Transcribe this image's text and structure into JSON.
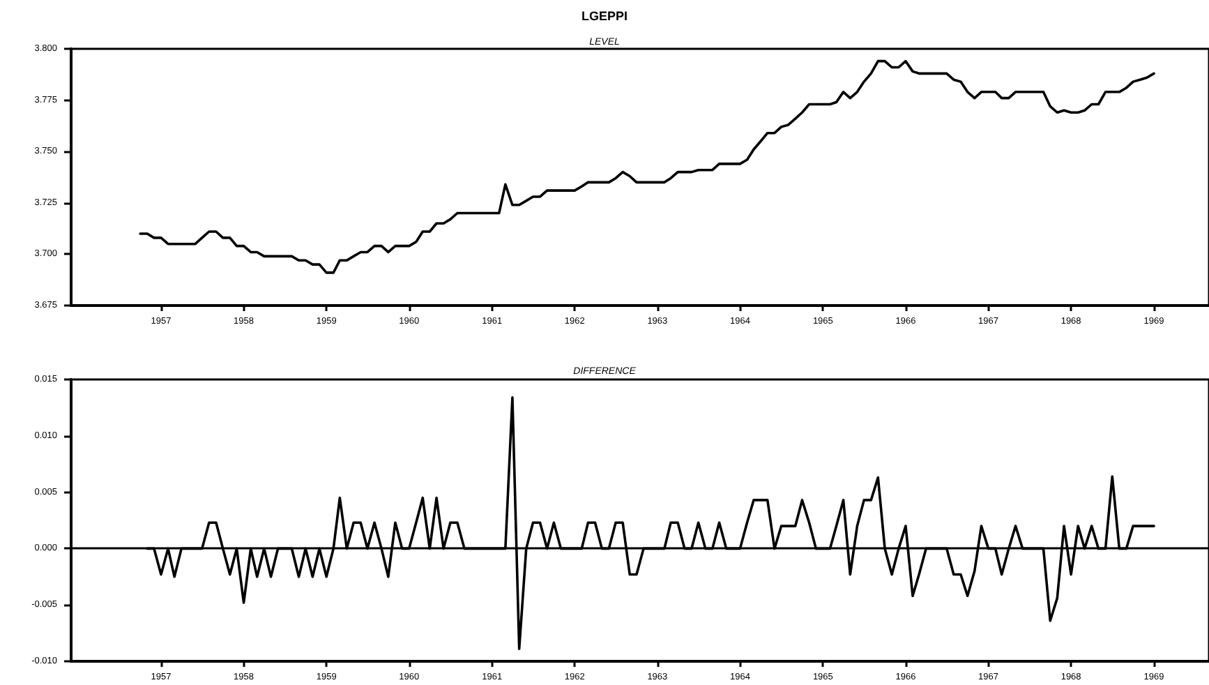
{
  "chart_data": [
    {
      "type": "line",
      "title": "LGEPPI",
      "subtitle": "LEVEL",
      "x": [
        "1956-10",
        "1956-11",
        "1956-12",
        "1957-01",
        "1957-02",
        "1957-03",
        "1957-04",
        "1957-05",
        "1957-06",
        "1957-07",
        "1957-08",
        "1957-09",
        "1957-10",
        "1957-11",
        "1957-12",
        "1958-01",
        "1958-02",
        "1958-03",
        "1958-04",
        "1958-05",
        "1958-06",
        "1958-07",
        "1958-08",
        "1958-09",
        "1958-10",
        "1958-11",
        "1958-12",
        "1959-01",
        "1959-02",
        "1959-03",
        "1959-04",
        "1959-05",
        "1959-06",
        "1959-07",
        "1959-08",
        "1959-09",
        "1959-10",
        "1959-11",
        "1959-12",
        "1960-01",
        "1960-02",
        "1960-03",
        "1960-04",
        "1960-05",
        "1960-06",
        "1960-07",
        "1960-08",
        "1960-09",
        "1960-10",
        "1960-11",
        "1960-12",
        "1961-01",
        "1961-02",
        "1961-03",
        "1961-04",
        "1961-05",
        "1961-06",
        "1961-07",
        "1961-08",
        "1961-09",
        "1961-10",
        "1961-11",
        "1961-12",
        "1962-01",
        "1962-02",
        "1962-03",
        "1962-04",
        "1962-05",
        "1962-06",
        "1962-07",
        "1962-08",
        "1962-09",
        "1962-10",
        "1962-11",
        "1962-12",
        "1963-01",
        "1963-02",
        "1963-03",
        "1963-04",
        "1963-05",
        "1963-06",
        "1963-07",
        "1963-08",
        "1963-09",
        "1963-10",
        "1963-11",
        "1963-12",
        "1964-01",
        "1964-02",
        "1964-03",
        "1964-04",
        "1964-05",
        "1964-06",
        "1964-07",
        "1964-08",
        "1964-09",
        "1964-10",
        "1964-11",
        "1964-12",
        "1965-01",
        "1965-02",
        "1965-03",
        "1965-04",
        "1965-05",
        "1965-06",
        "1965-07",
        "1965-08",
        "1965-09",
        "1965-10",
        "1965-11",
        "1965-12",
        "1966-01",
        "1966-02",
        "1966-03",
        "1966-04",
        "1966-05",
        "1966-06",
        "1966-07",
        "1966-08",
        "1966-09",
        "1966-10",
        "1966-11",
        "1966-12",
        "1967-01",
        "1967-02",
        "1967-03",
        "1967-04",
        "1967-05",
        "1967-06",
        "1967-07",
        "1967-08",
        "1967-09",
        "1967-10",
        "1967-11",
        "1967-12",
        "1968-01",
        "1968-02",
        "1968-03",
        "1968-04",
        "1968-05",
        "1968-06",
        "1968-07",
        "1968-08",
        "1968-09",
        "1968-10",
        "1968-11",
        "1968-12",
        "1969-01"
      ],
      "series": [
        {
          "color": "#000000",
          "values": [
            3.71,
            3.71,
            3.708,
            3.708,
            3.705,
            3.705,
            3.705,
            3.705,
            3.705,
            3.708,
            3.711,
            3.711,
            3.708,
            3.708,
            3.704,
            3.704,
            3.701,
            3.701,
            3.699,
            3.699,
            3.699,
            3.699,
            3.699,
            3.697,
            3.697,
            3.695,
            3.695,
            3.691,
            3.691,
            3.697,
            3.697,
            3.699,
            3.701,
            3.701,
            3.704,
            3.704,
            3.701,
            3.704,
            3.704,
            3.704,
            3.706,
            3.711,
            3.711,
            3.715,
            3.715,
            3.717,
            3.72,
            3.72,
            3.72,
            3.72,
            3.72,
            3.72,
            3.72,
            3.734,
            3.724,
            3.724,
            3.726,
            3.728,
            3.728,
            3.731,
            3.731,
            3.731,
            3.731,
            3.731,
            3.733,
            3.735,
            3.735,
            3.735,
            3.735,
            3.737,
            3.74,
            3.738,
            3.735,
            3.735,
            3.735,
            3.735,
            3.735,
            3.737,
            3.74,
            3.74,
            3.74,
            3.741,
            3.741,
            3.741,
            3.744,
            3.744,
            3.744,
            3.744,
            3.746,
            3.751,
            3.755,
            3.759,
            3.759,
            3.762,
            3.763,
            3.766,
            3.769,
            3.773,
            3.773,
            3.773,
            3.773,
            3.774,
            3.779,
            3.776,
            3.779,
            3.784,
            3.788,
            3.794,
            3.794,
            3.791,
            3.791,
            3.794,
            3.789,
            3.788,
            3.788,
            3.788,
            3.788,
            3.788,
            3.785,
            3.784,
            3.779,
            3.776,
            3.779,
            3.779,
            3.779,
            3.776,
            3.776,
            3.779,
            3.779,
            3.779,
            3.779,
            3.779,
            3.772,
            3.769,
            3.77,
            3.769,
            3.769,
            3.77,
            3.773,
            3.773,
            3.779,
            3.779,
            3.779,
            3.781,
            3.784,
            3.785,
            3.786,
            3.788
          ]
        }
      ],
      "xlim": [
        "1955-12",
        "1969-09"
      ],
      "xticks": [
        "1957",
        "1958",
        "1959",
        "1960",
        "1961",
        "1962",
        "1963",
        "1964",
        "1965",
        "1966",
        "1967",
        "1968",
        "1969"
      ],
      "ylim": [
        3.675,
        3.8
      ],
      "yticks": [
        {
          "value": 3.675,
          "label": "3.675"
        },
        {
          "value": 3.7,
          "label": "3.700"
        },
        {
          "value": 3.725,
          "label": "3.725"
        },
        {
          "value": 3.75,
          "label": "3.750"
        },
        {
          "value": 3.775,
          "label": "3.775"
        },
        {
          "value": 3.8,
          "label": "3.800"
        }
      ]
    },
    {
      "type": "line",
      "subtitle": "DIFFERENCE",
      "x": [
        "1956-11",
        "1956-12",
        "1957-01",
        "1957-02",
        "1957-03",
        "1957-04",
        "1957-05",
        "1957-06",
        "1957-07",
        "1957-08",
        "1957-09",
        "1957-10",
        "1957-11",
        "1957-12",
        "1958-01",
        "1958-02",
        "1958-03",
        "1958-04",
        "1958-05",
        "1958-06",
        "1958-07",
        "1958-08",
        "1958-09",
        "1958-10",
        "1958-11",
        "1958-12",
        "1959-01",
        "1959-02",
        "1959-03",
        "1959-04",
        "1959-05",
        "1959-06",
        "1959-07",
        "1959-08",
        "1959-09",
        "1959-10",
        "1959-11",
        "1959-12",
        "1960-01",
        "1960-02",
        "1960-03",
        "1960-04",
        "1960-05",
        "1960-06",
        "1960-07",
        "1960-08",
        "1960-09",
        "1960-10",
        "1960-11",
        "1960-12",
        "1961-01",
        "1961-02",
        "1961-03",
        "1961-04",
        "1961-05",
        "1961-06",
        "1961-07",
        "1961-08",
        "1961-09",
        "1961-10",
        "1961-11",
        "1961-12",
        "1962-01",
        "1962-02",
        "1962-03",
        "1962-04",
        "1962-05",
        "1962-06",
        "1962-07",
        "1962-08",
        "1962-09",
        "1962-10",
        "1962-11",
        "1962-12",
        "1963-01",
        "1963-02",
        "1963-03",
        "1963-04",
        "1963-05",
        "1963-06",
        "1963-07",
        "1963-08",
        "1963-09",
        "1963-10",
        "1963-11",
        "1963-12",
        "1964-01",
        "1964-02",
        "1964-03",
        "1964-04",
        "1964-05",
        "1964-06",
        "1964-07",
        "1964-08",
        "1964-09",
        "1964-10",
        "1964-11",
        "1964-12",
        "1965-01",
        "1965-02",
        "1965-03",
        "1965-04",
        "1965-05",
        "1965-06",
        "1965-07",
        "1965-08",
        "1965-09",
        "1965-10",
        "1965-11",
        "1965-12",
        "1966-01",
        "1966-02",
        "1966-03",
        "1966-04",
        "1966-05",
        "1966-06",
        "1966-07",
        "1966-08",
        "1966-09",
        "1966-10",
        "1966-11",
        "1966-12",
        "1967-01",
        "1967-02",
        "1967-03",
        "1967-04",
        "1967-05",
        "1967-06",
        "1967-07",
        "1967-08",
        "1967-09",
        "1967-10",
        "1967-11",
        "1967-12",
        "1968-01",
        "1968-02",
        "1968-03",
        "1968-04",
        "1968-05",
        "1968-06",
        "1968-07",
        "1968-08",
        "1968-09",
        "1968-10",
        "1968-11",
        "1968-12",
        "1969-01"
      ],
      "series": [
        {
          "color": "#000000",
          "values": [
            0,
            0,
            -0.0023,
            0,
            -0.0025,
            0,
            0,
            0,
            0,
            0.0023,
            0.0023,
            0,
            -0.0023,
            0,
            -0.0048,
            0,
            -0.0025,
            0,
            -0.0025,
            0,
            0,
            0,
            -0.0025,
            0,
            -0.0025,
            0,
            -0.0025,
            0,
            0.0045,
            0,
            0.0023,
            0.0023,
            0,
            0.0023,
            0,
            -0.0025,
            0.0023,
            0,
            0,
            0.0023,
            0.0045,
            0,
            0.0045,
            0,
            0.0023,
            0.0023,
            0,
            0,
            0,
            0,
            0,
            0,
            0,
            0.0134,
            -0.0089,
            0,
            0.0023,
            0.0023,
            0,
            0.0023,
            0,
            0,
            0,
            0,
            0.0023,
            0.0023,
            0,
            0,
            0.0023,
            0.0023,
            -0.0023,
            -0.0023,
            0,
            0,
            0,
            0,
            0.0023,
            0.0023,
            0,
            0,
            0.0023,
            0,
            0,
            0.0023,
            0,
            0,
            0,
            0.0023,
            0.0043,
            0.0043,
            0.0043,
            0,
            0.002,
            0.002,
            0.002,
            0.0043,
            0.0023,
            0,
            0,
            0,
            0.002,
            0.0043,
            -0.0023,
            0.002,
            0.0043,
            0.0043,
            0.0063,
            0,
            -0.0023,
            0,
            0.002,
            -0.0042,
            -0.0023,
            0,
            0,
            0,
            0,
            -0.0023,
            -0.0023,
            -0.0042,
            -0.002,
            0.002,
            0,
            0,
            -0.0023,
            0,
            0.002,
            0,
            0,
            0,
            0,
            -0.0064,
            -0.0044,
            0.002,
            -0.0023,
            0.002,
            0,
            0.002,
            0,
            0,
            0.0064,
            0,
            0,
            0.002,
            0.002,
            0.002,
            0.002
          ]
        }
      ],
      "xlim": [
        "1955-12",
        "1969-09"
      ],
      "xticks": [
        "1957",
        "1958",
        "1959",
        "1960",
        "1961",
        "1962",
        "1963",
        "1964",
        "1965",
        "1966",
        "1967",
        "1968",
        "1969"
      ],
      "ylim": [
        -0.01,
        0.015
      ],
      "yticks": [
        {
          "value": -0.01,
          "label": "-0.010"
        },
        {
          "value": -0.005,
          "label": "-0.005"
        },
        {
          "value": 0,
          "label": "0.000"
        },
        {
          "value": 0.005,
          "label": "0.005"
        },
        {
          "value": 0.01,
          "label": "0.010"
        },
        {
          "value": 0.015,
          "label": "0.015"
        }
      ],
      "ref_lines": [
        {
          "axis": "y",
          "value": 0
        }
      ]
    }
  ]
}
